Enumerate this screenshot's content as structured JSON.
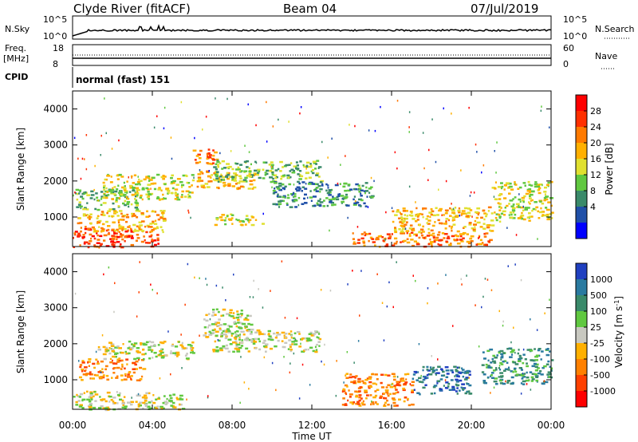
{
  "header": {
    "station": "Clyde River (fitACF)",
    "beam": "Beam 04",
    "date": "07/Jul/2019"
  },
  "noise_panel": {
    "left_label": "N.Sky",
    "right_label": "N.Search",
    "left_ticks": [
      "10^5",
      "10^0"
    ],
    "right_ticks": [
      "10^5",
      "10^0"
    ]
  },
  "freq_panel": {
    "label_line1": "Freq.",
    "label_line2": "[MHz]",
    "left_ticks": [
      "18",
      "8"
    ],
    "right_label": "Nave",
    "right_ticks": [
      "60",
      "0"
    ]
  },
  "cpid_panel": {
    "label": "CPID",
    "text": "normal (fast) 151"
  },
  "power_panel": {
    "ylabel": "Slant Range [km]",
    "yticks": [
      "1000",
      "2000",
      "3000",
      "4000"
    ],
    "colorbar_label": "Power [dB]",
    "colorbar_ticks": [
      "4",
      "8",
      "12",
      "16",
      "20",
      "24",
      "28"
    ],
    "colors": [
      "#0000ff",
      "#2050a8",
      "#3a8a6a",
      "#60c840",
      "#e0e030",
      "#ffb000",
      "#ff7a00",
      "#ff3000",
      "#ff0000"
    ]
  },
  "velocity_panel": {
    "ylabel": "Slant Range [km]",
    "yticks": [
      "1000",
      "2000",
      "3000",
      "4000"
    ],
    "colorbar_label": "Velocity [m s^-1]",
    "colorbar_ticks": [
      "1000",
      "500",
      "100",
      "25",
      "-25",
      "-100",
      "-500",
      "-1000"
    ],
    "colors": [
      "#2040c0",
      "#2a7aa0",
      "#3a8a6a",
      "#60c840",
      "#c8c8c0",
      "#ffb000",
      "#ff8000",
      "#ff4000",
      "#ff0000"
    ]
  },
  "xaxis": {
    "label": "Time UT",
    "ticks": [
      "00:00",
      "04:00",
      "08:00",
      "12:00",
      "16:00",
      "20:00",
      "00:00"
    ]
  },
  "chart_data": {
    "type": "heatmap",
    "x_range_hours": [
      0,
      24
    ],
    "y_range_km": [
      180,
      4500
    ],
    "power_clusters": [
      {
        "t0": 0.0,
        "t1": 4.4,
        "r0": 180,
        "r1": 700,
        "val": 28
      },
      {
        "t0": 0.2,
        "t1": 4.6,
        "r0": 600,
        "r1": 1200,
        "val": 18
      },
      {
        "t0": 0.1,
        "t1": 3.2,
        "r0": 1200,
        "r1": 1800,
        "val": 12
      },
      {
        "t0": 1.5,
        "t1": 6.0,
        "r0": 1500,
        "r1": 2200,
        "val": 16
      },
      {
        "t0": 6.0,
        "t1": 7.4,
        "r0": 2500,
        "r1": 2900,
        "val": 24
      },
      {
        "t0": 6.2,
        "t1": 9.2,
        "r0": 1800,
        "r1": 2300,
        "val": 20
      },
      {
        "t0": 7.0,
        "t1": 12.5,
        "r0": 2000,
        "r1": 2600,
        "val": 12
      },
      {
        "t0": 10.0,
        "t1": 15.0,
        "r0": 1300,
        "r1": 2000,
        "val": 8
      },
      {
        "t0": 7.0,
        "t1": 9.5,
        "r0": 800,
        "r1": 1100,
        "val": 14
      },
      {
        "t0": 14.0,
        "t1": 21.0,
        "r0": 200,
        "r1": 600,
        "val": 24
      },
      {
        "t0": 16.0,
        "t1": 21.0,
        "r0": 600,
        "r1": 1300,
        "val": 18
      },
      {
        "t0": 21.0,
        "t1": 24.0,
        "r0": 900,
        "r1": 2000,
        "val": 14
      }
    ],
    "velocity_clusters": [
      {
        "t0": 0.0,
        "t1": 5.5,
        "r0": 180,
        "r1": 700,
        "val": 0
      },
      {
        "t0": 0.3,
        "t1": 3.5,
        "r0": 1000,
        "r1": 1600,
        "val": -300
      },
      {
        "t0": 1.0,
        "t1": 6.0,
        "r0": 1600,
        "r1": 2100,
        "val": 0
      },
      {
        "t0": 6.5,
        "t1": 9.0,
        "r0": 2200,
        "r1": 3000,
        "val": 0
      },
      {
        "t0": 7.0,
        "t1": 12.5,
        "r0": 1800,
        "r1": 2400,
        "val": 0
      },
      {
        "t0": 13.5,
        "t1": 17.0,
        "r0": 300,
        "r1": 1200,
        "val": -300
      },
      {
        "t0": 17.0,
        "t1": 20.0,
        "r0": 600,
        "r1": 1400,
        "val": 500
      },
      {
        "t0": 20.5,
        "t1": 24.0,
        "r0": 900,
        "r1": 1900,
        "val": 300
      }
    ]
  }
}
